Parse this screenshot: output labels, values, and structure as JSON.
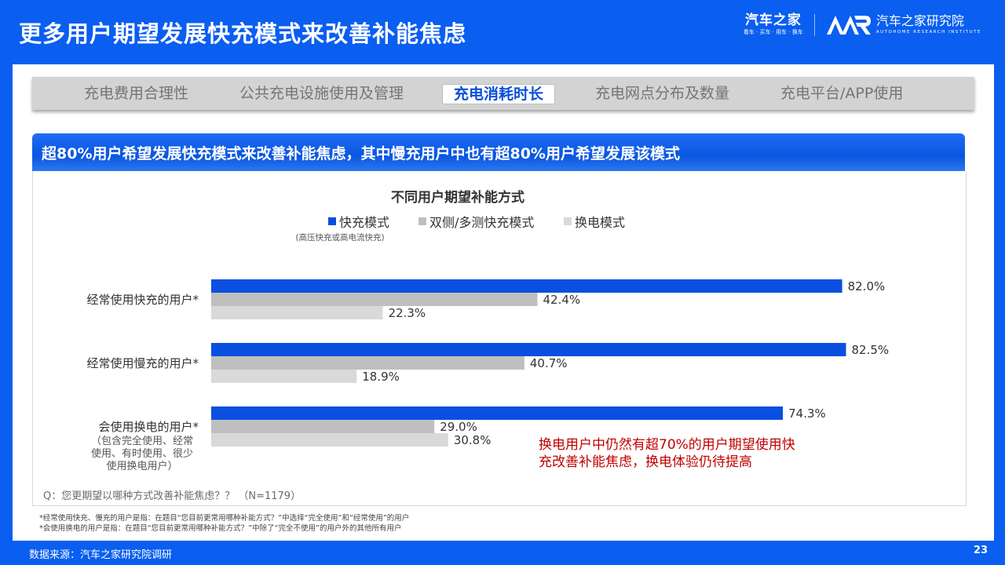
{
  "header": {
    "title": "更多用户期望发展快充模式来改善补能焦虑",
    "brand_primary": "汽车之家",
    "brand_primary_tagline": "看车 · 买车 · 用车 · 换车",
    "brand_secondary": "汽车之家研究院",
    "brand_secondary_tagline": "AUTOHOME RESEARCH INSTITUTE"
  },
  "tabs": [
    {
      "label": "充电费用合理性",
      "active": false
    },
    {
      "label": "公共充电设施使用及管理",
      "active": false
    },
    {
      "label": "充电消耗时长",
      "active": true
    },
    {
      "label": "充电网点分布及数量",
      "active": false
    },
    {
      "label": "充电平台/APP使用",
      "active": false
    }
  ],
  "banner": "超80%用户希望发展快充模式来改善补能焦虑，其中慢充用户中也有超80%用户希望发展该模式",
  "chart_data": {
    "type": "bar",
    "orientation": "horizontal",
    "title": "不同用户期望补能方式",
    "legend_placement": "top",
    "categories": [
      "经常使用快充的用户*",
      "经常使用慢充的用户*",
      "会使用换电的用户*"
    ],
    "category_notes": [
      "",
      "",
      "（包含完全使用、经常\n使用、有时使用、很少\n使用换电用户）"
    ],
    "series": [
      {
        "name": "快充模式",
        "note": "(高压快充或高电流快充)",
        "color": "#0a4fe0",
        "values": [
          82.0,
          82.5,
          74.3
        ]
      },
      {
        "name": "双侧/多测快充模式",
        "color": "#bfbfbf",
        "values": [
          42.4,
          40.7,
          29.0
        ]
      },
      {
        "name": "换电模式",
        "color": "#d9d9d9",
        "values": [
          22.3,
          18.9,
          30.8
        ]
      }
    ],
    "value_suffix": "%",
    "xlim": [
      0,
      100
    ],
    "grid": false,
    "annotation": "换电用户中仍然有超70%的用户期望使用快\n充改善补能焦虑，换电体验仍待提高",
    "annotation_color": "#c00000"
  },
  "question": "Q：您更期望以哪种方式改善补能焦虑？？ （N=1179）",
  "notes": [
    "*经常使用快充、慢充的用户是指：在题目“您目前更常用哪种补能方式？”中选择“完全使用”和“经常使用”的用户",
    "*会使用换电的用户是指：在题目“您目前更常用哪种补能方式？”中除了“完全不使用”的用户外的其他所有用户"
  ],
  "footer": {
    "source": "数据来源：汽车之家研究院调研",
    "page": "23"
  }
}
